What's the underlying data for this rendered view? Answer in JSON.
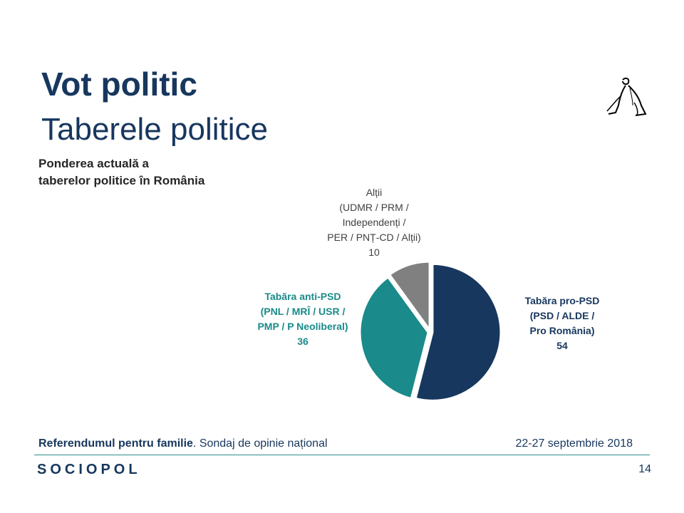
{
  "slide": {
    "title": "Vot politic",
    "subtitle": "Taberele politice",
    "caption_lines": [
      "Ponderea actuală a",
      "taberelor politice în România"
    ]
  },
  "labels": {
    "altii": [
      "Alții",
      "(UDMR / PRM /",
      "Independenți /",
      "PER / PNȚ-CD / Alții)",
      "10"
    ],
    "anti": [
      "Tabăra anti-PSD",
      "(PNL / MRÎ / USR /",
      "PMP / P Neoliberal)",
      "36"
    ],
    "pro": [
      "Tabăra pro-PSD",
      "(PSD / ALDE /",
      "Pro România)",
      "54"
    ]
  },
  "chart_data": {
    "type": "pie",
    "slices": [
      {
        "name": "Tabăra pro-PSD (PSD / ALDE / Pro România)",
        "value": 54,
        "color": "#17375e"
      },
      {
        "name": "Tabăra anti-PSD (PNL / MRÎ / USR / PMP / P Neoliberal)",
        "value": 36,
        "color": "#1a8a8a"
      },
      {
        "name": "Alții (UDMR / PRM / Independenți / PER / PNȚ-CD / Alții)",
        "value": 10,
        "color": "#808080"
      }
    ]
  },
  "footer": {
    "title_bold": "Referendumul pentru familie",
    "title_rest": ". Sondaj de opinie național",
    "date": "22-27 septembrie 2018",
    "brand": "SOCIOPOL",
    "page": "14"
  },
  "colors": {
    "primary": "#17375e",
    "teal": "#1a8a8a",
    "gray": "#808080"
  }
}
